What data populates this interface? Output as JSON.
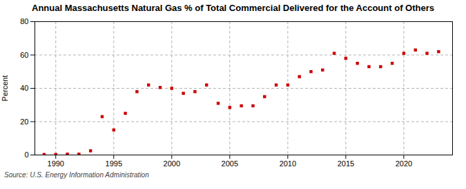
{
  "chart_data": {
    "type": "scatter",
    "title": "Annual Massachusetts Natural Gas % of Total Commercial Delivered for the Account of Others",
    "ylabel": "Percent",
    "annotations": [
      "Source: U.S. Energy Information Administration"
    ],
    "x": [
      1989,
      1990,
      1991,
      1992,
      1993,
      1994,
      1995,
      1996,
      1997,
      1998,
      1999,
      2000,
      2001,
      2002,
      2003,
      2004,
      2005,
      2006,
      2007,
      2008,
      2009,
      2010,
      2011,
      2012,
      2013,
      2014,
      2015,
      2016,
      2017,
      2018,
      2019,
      2020,
      2021,
      2022,
      2023
    ],
    "values": [
      0.3,
      0.3,
      0.5,
      0.5,
      2.5,
      23.0,
      15.0,
      25.0,
      38.0,
      42.0,
      40.5,
      40.0,
      37.0,
      38.0,
      42.0,
      31.0,
      28.5,
      29.5,
      29.5,
      35.0,
      42.0,
      42.0,
      47.0,
      50.0,
      51.0,
      61.0,
      58.0,
      55.0,
      53.0,
      53.0,
      55.0,
      61.0,
      63.0,
      61.0,
      62.0
    ],
    "color": "#cc0000",
    "marker": "square",
    "xlim": [
      1988.2,
      2024.2
    ],
    "ylim": [
      0,
      80
    ],
    "xticks": [
      1990,
      1995,
      2000,
      2005,
      2010,
      2015,
      2020
    ],
    "yticks": [
      0,
      20,
      40,
      60,
      80
    ],
    "grid": true
  }
}
